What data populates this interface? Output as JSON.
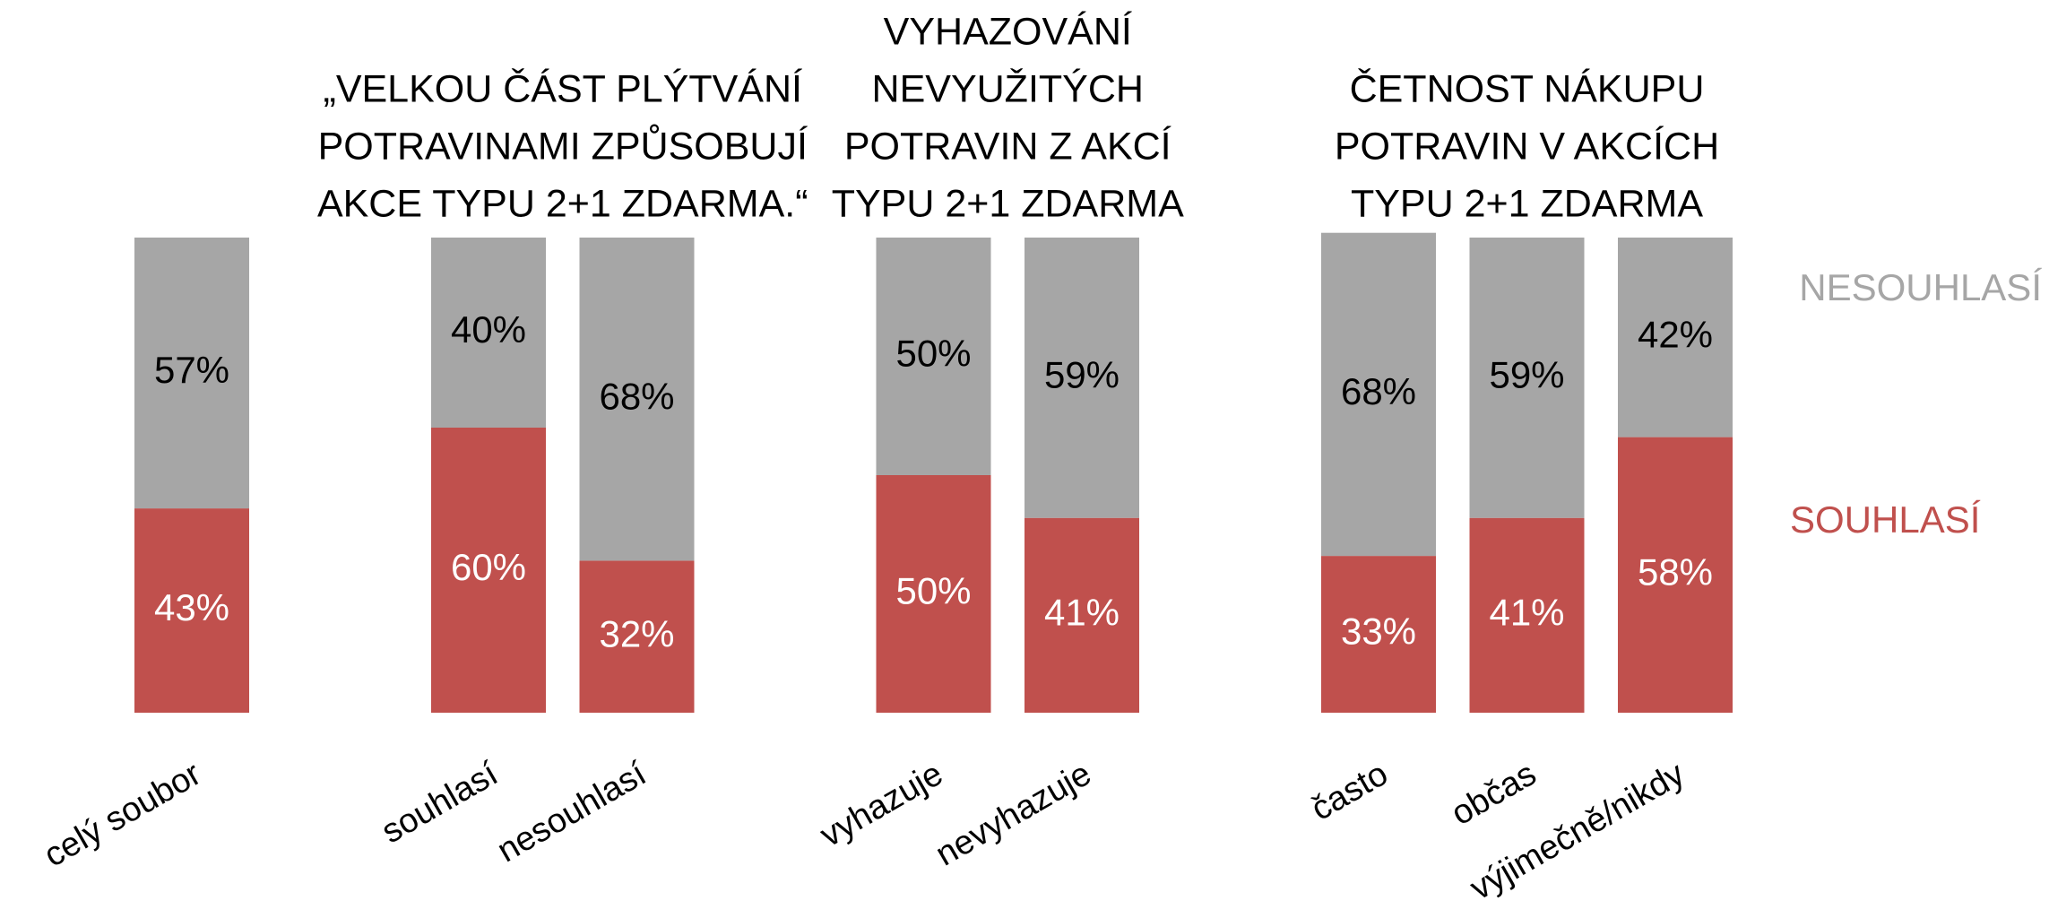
{
  "chart_data": {
    "type": "bar",
    "stacked": true,
    "groups": [
      {
        "categories": [
          "celý soubor"
        ]
      },
      {
        "title": [
          "„VELKOU ČÁST PLÝTVÁNÍ",
          "POTRAVINAMI ZPŮSOBUJÍ",
          "AKCE TYPU 2+1 ZDARMA.“"
        ],
        "categories": [
          "souhlasí",
          "nesouhlasí"
        ]
      },
      {
        "title": [
          "VYHAZOVÁNÍ",
          "NEVYUŽITÝCH",
          "POTRAVIN Z AKCÍ",
          "TYPU 2+1 ZDARMA"
        ],
        "categories": [
          "vyhazuje",
          "nevyhazuje"
        ]
      },
      {
        "title": [
          "ČETNOST NÁKUPU",
          "POTRAVIN V AKCÍCH",
          "TYPU 2+1 ZDARMA"
        ],
        "categories": [
          "často",
          "občas",
          "výjimečně/nikdy"
        ]
      }
    ],
    "series": [
      {
        "name": "SOUHLASÍ",
        "color": "#c0504d",
        "label_color": "#ffffff",
        "values": [
          43,
          60,
          32,
          50,
          41,
          33,
          41,
          58
        ],
        "value_labels": [
          "43%",
          "60%",
          "32%",
          "50%",
          "41%",
          "33%",
          "41%",
          "58%"
        ]
      },
      {
        "name": "NESOUHLASÍ",
        "color": "#a6a6a6",
        "label_color": "#000000",
        "values": [
          57,
          40,
          68,
          50,
          59,
          68,
          59,
          42
        ],
        "value_labels": [
          "57%",
          "40%",
          "68%",
          "50%",
          "59%",
          "68%",
          "59%",
          "42%"
        ]
      }
    ],
    "ylim": [
      0,
      100
    ]
  }
}
